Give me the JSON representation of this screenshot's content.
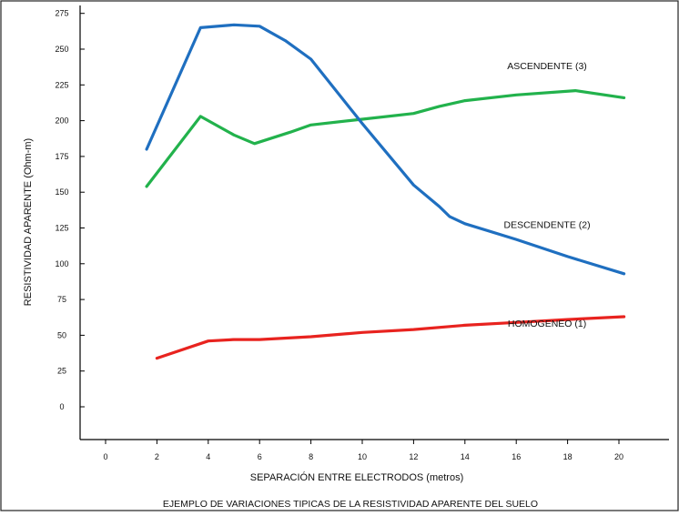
{
  "chart_data": {
    "type": "line",
    "title": "",
    "caption": "EJEMPLO DE VARIACIONES TIPICAS DE LA RESISTIVIDAD APARENTE DEL SUELO",
    "xlabel": "SEPARACIÓN ENTRE ELECTRODOS (metros)",
    "ylabel": "RESISTIVIDAD APARENTE (Ohm-m)",
    "xlim": [
      0,
      21
    ],
    "ylim": [
      0,
      275
    ],
    "x_ticks": [
      "0",
      "2",
      "4",
      "6",
      "8",
      "10",
      "12",
      "14",
      "16",
      "18",
      "20"
    ],
    "y_ticks": [
      "275",
      "250",
      "225",
      "200",
      "175",
      "150",
      "125",
      "100",
      "75",
      "50",
      "25",
      "0"
    ],
    "grid": false,
    "legend": "inline labels",
    "series": [
      {
        "name": "ASCENDENTE (3)",
        "color": "#22b24c",
        "x": [
          1.6,
          3.7,
          5.0,
          5.8,
          7.2,
          8.0,
          10.0,
          12.0,
          13.0,
          14.0,
          16.0,
          18.3,
          20.2
        ],
        "y": [
          154,
          203,
          190,
          184,
          192,
          197,
          201,
          205,
          210,
          214,
          218,
          221,
          216
        ]
      },
      {
        "name": "DESCENDENTE (2)",
        "color": "#1f6fc0",
        "x": [
          1.6,
          3.7,
          5.0,
          6.0,
          7.0,
          8.0,
          10.0,
          12.0,
          13.0,
          13.4,
          14.0,
          16.0,
          18.0,
          20.2
        ],
        "y": [
          180,
          265,
          267,
          266,
          256,
          243,
          198,
          155,
          140,
          133,
          128,
          117,
          105,
          93
        ]
      },
      {
        "name": "HOMOGENEO (1)",
        "color": "#e8231f",
        "x": [
          2.0,
          4.0,
          5.0,
          6.0,
          8.0,
          10.0,
          12.0,
          14.0,
          16.0,
          18.0,
          20.2
        ],
        "y": [
          34,
          46,
          47,
          47,
          49,
          52,
          54,
          57,
          59,
          61,
          63
        ]
      }
    ],
    "label_positions": [
      {
        "name": "ASCENDENTE (3)",
        "x": 17.2,
        "y": 236
      },
      {
        "name": "DESCENDENTE (2)",
        "x": 17.2,
        "y": 125
      },
      {
        "name": "HOMOGENEO (1)",
        "x": 17.2,
        "y": 56
      }
    ]
  }
}
